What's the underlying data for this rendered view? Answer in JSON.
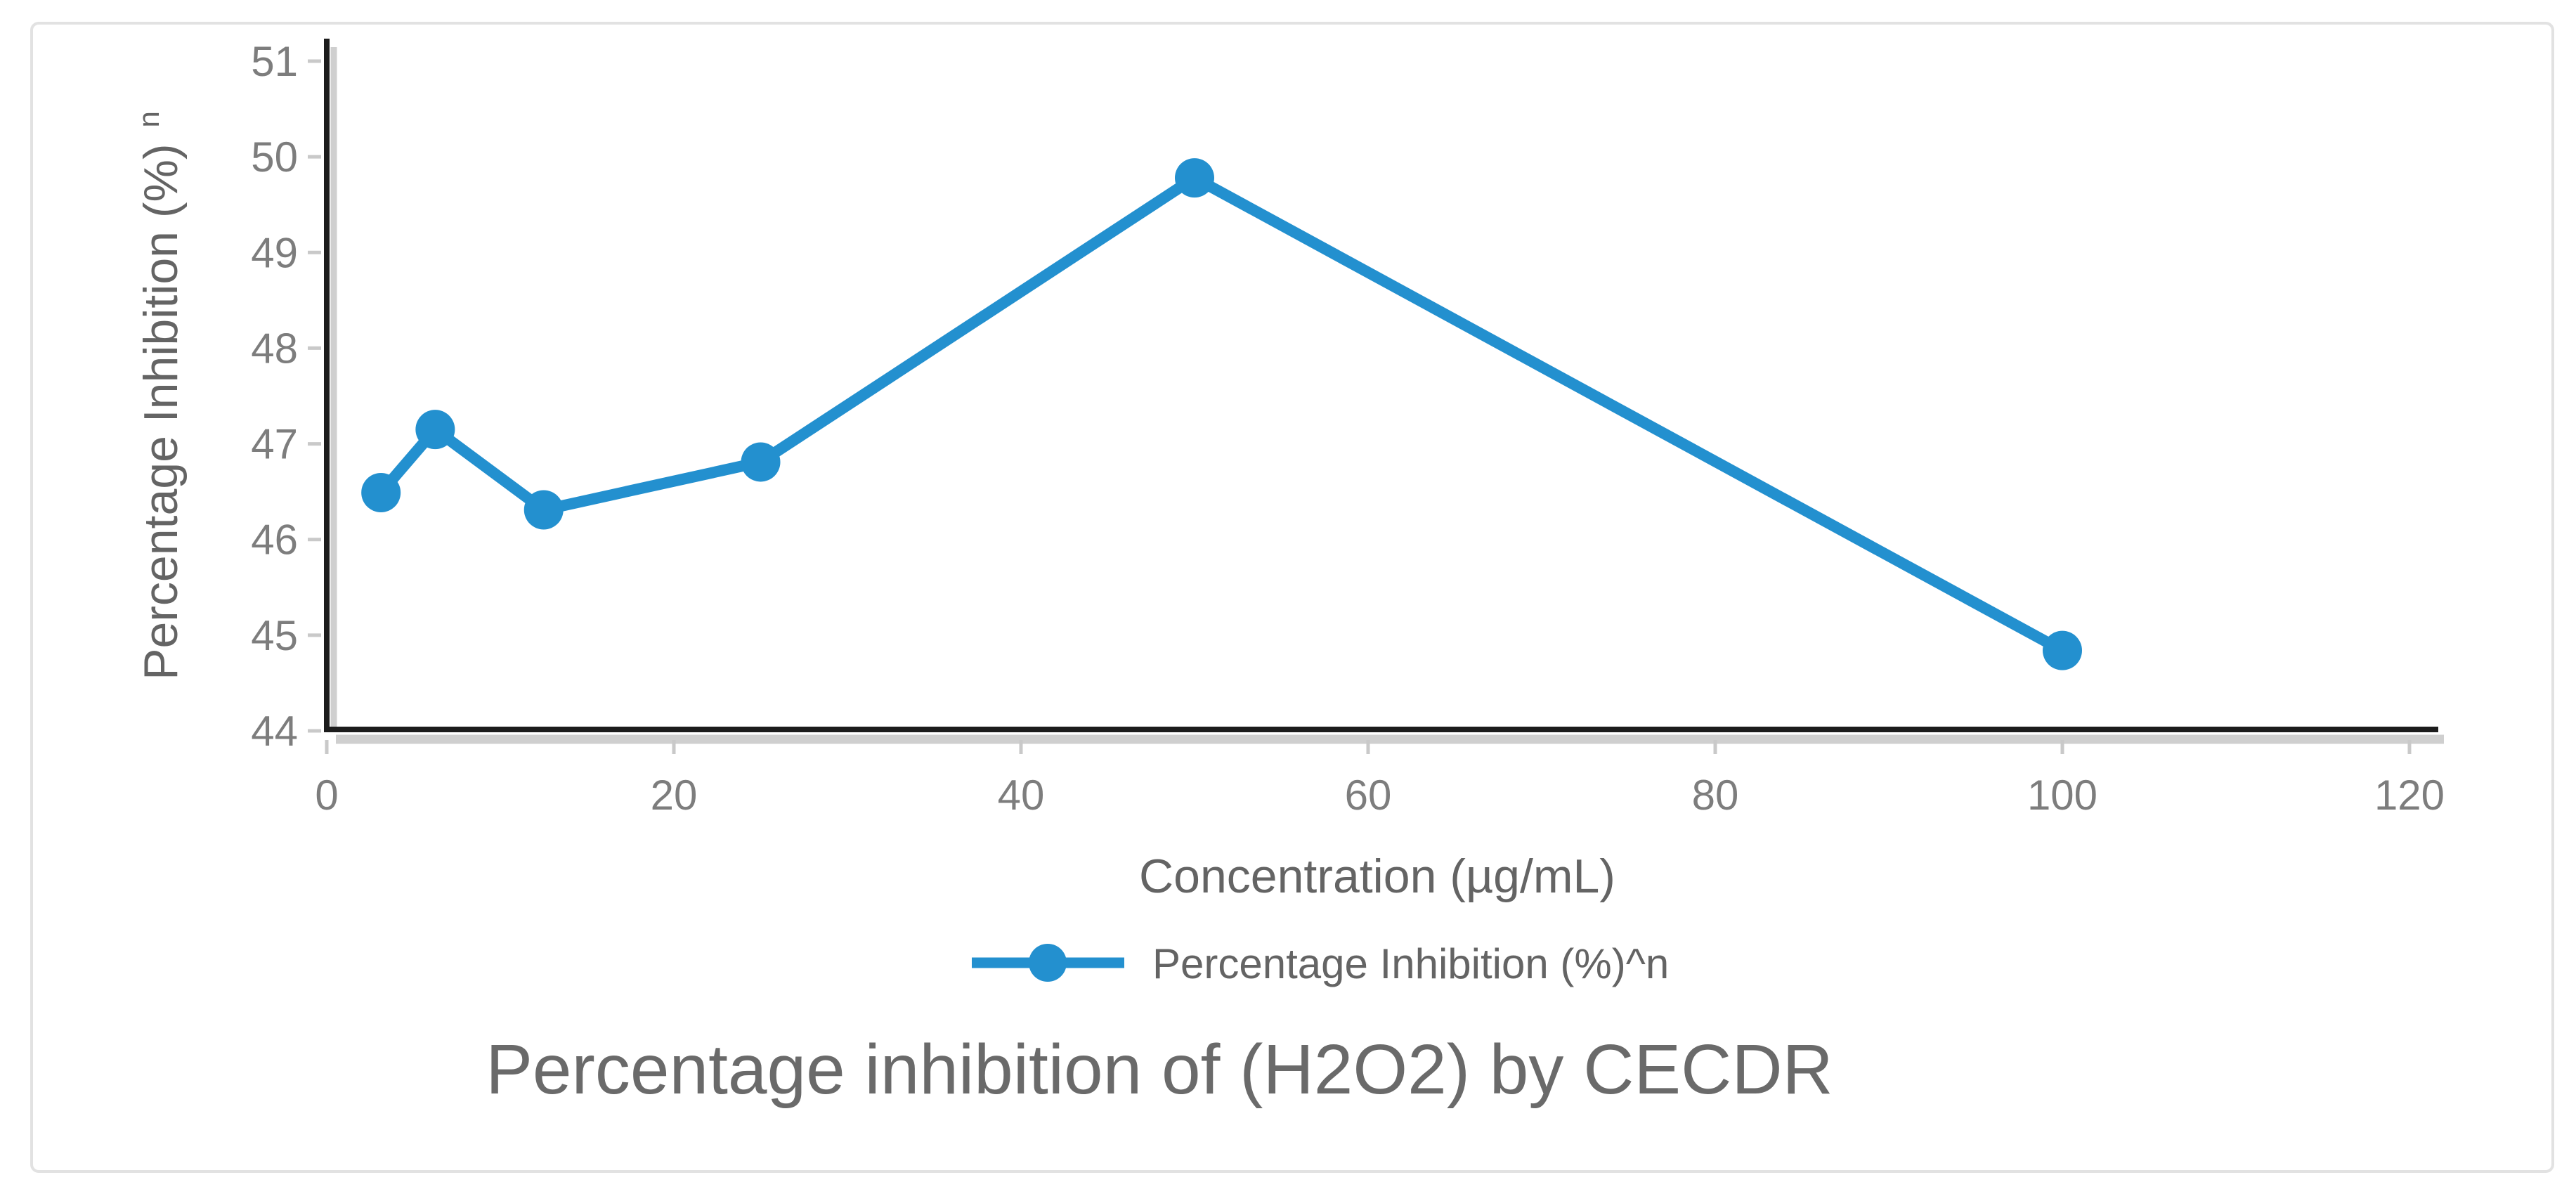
{
  "figure": {
    "background": "#ffffff",
    "frame_border_color": "#e2e2e2"
  },
  "chart_data": {
    "type": "line",
    "title": "Percentage inhibition of (H2O2) by CECDR",
    "xlabel": "Concentration (µg/mL)",
    "ylabel_base": "Percentage Inhibition (%)",
    "ylabel_sup": "n",
    "legend": {
      "label": "Percentage Inhibition (%)^n",
      "position": "bottom"
    },
    "series": [
      {
        "name": "Percentage Inhibition (%)^n",
        "color": "#2390CF",
        "marker": "circle",
        "x": [
          3.125,
          6.25,
          12.5,
          25,
          50,
          100
        ],
        "y": [
          46.49,
          47.15,
          46.31,
          46.81,
          49.78,
          44.84
        ]
      }
    ],
    "xlim": [
      0,
      120
    ],
    "ylim": [
      44,
      51
    ],
    "xticks": [
      0,
      20,
      40,
      60,
      80,
      100,
      120
    ],
    "yticks": [
      44,
      45,
      46,
      47,
      48,
      49,
      50,
      51
    ],
    "grid": false,
    "axis_color": "#1c1c1c",
    "axis_shadow_color": "#cfcfcf",
    "tick_mark_color": "#c9c9c9",
    "tick_label_color": "#7d7d7d",
    "axis_title_color": "#646464",
    "legend_text_color": "#646464",
    "title_color": "#6a6a6a"
  }
}
